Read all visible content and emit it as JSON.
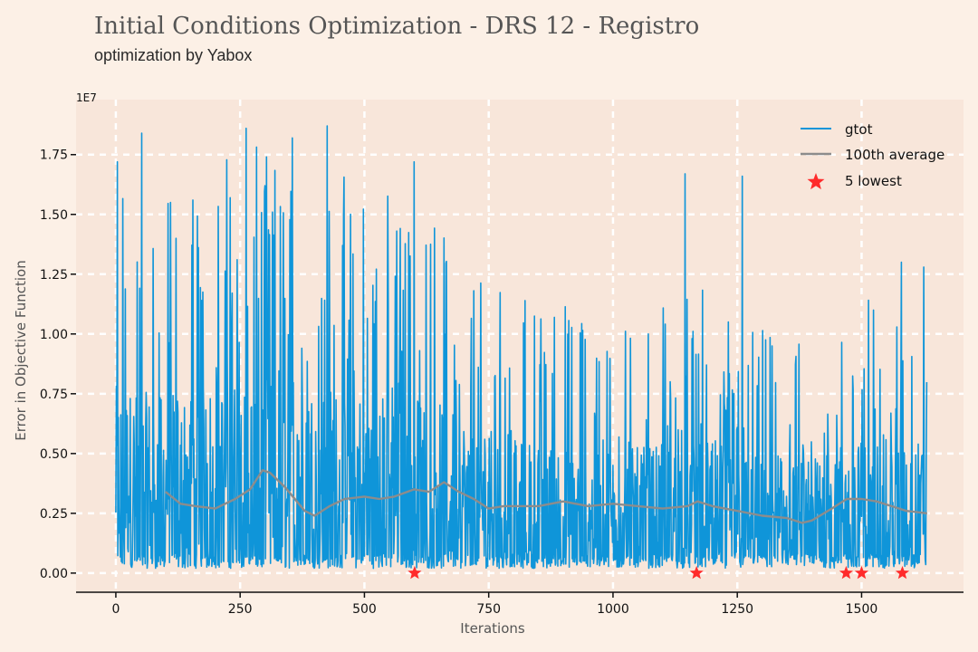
{
  "header": {
    "title": "Initial Conditions Optimization - DRS 12 - Registro",
    "subtitle": "optimization by Yabox"
  },
  "colors": {
    "background": "#fcf0e6",
    "plot_background": "#f8e6da",
    "grid": "#ffffff",
    "gtot": "#0f95d9",
    "average": "#8c8c8c",
    "lowest": "#ff2b2b"
  },
  "chart_data": {
    "type": "line",
    "title": "Initial Conditions Optimization - DRS 12 - Registro",
    "subtitle": "optimization by Yabox",
    "xlabel": "Iterations",
    "ylabel": "Error in Objective Function",
    "y_multiplier_label": "1E7",
    "xlim": [
      -80,
      1705
    ],
    "ylim": [
      -0.08,
      1.98
    ],
    "xticks": [
      0,
      250,
      500,
      750,
      1000,
      1250,
      1500
    ],
    "xtick_labels": [
      "0",
      "250",
      "500",
      "750",
      "1000",
      "1250",
      "1500"
    ],
    "yticks": [
      0.0,
      0.25,
      0.5,
      0.75,
      1.0,
      1.25,
      1.5,
      1.75
    ],
    "ytick_labels": [
      "0.00",
      "0.25",
      "0.50",
      "0.75",
      "1.00",
      "1.25",
      "1.50",
      "1.75"
    ],
    "grid": true,
    "legend_position": "top-right",
    "legend": [
      "gtot",
      "100th average",
      "5 lowest"
    ],
    "series": [
      {
        "name": "gtot",
        "kind": "line",
        "n_points": 1632,
        "peaks": [
          {
            "x": 3,
            "y": 1.72
          },
          {
            "x": 52,
            "y": 1.84
          },
          {
            "x": 110,
            "y": 1.55
          },
          {
            "x": 155,
            "y": 1.56
          },
          {
            "x": 230,
            "y": 1.57
          },
          {
            "x": 262,
            "y": 1.86
          },
          {
            "x": 300,
            "y": 1.62
          },
          {
            "x": 355,
            "y": 1.82
          },
          {
            "x": 425,
            "y": 1.87
          },
          {
            "x": 600,
            "y": 1.72
          },
          {
            "x": 1145,
            "y": 1.67
          },
          {
            "x": 1260,
            "y": 1.66
          },
          {
            "x": 1580,
            "y": 1.3
          },
          {
            "x": 1625,
            "y": 1.28
          }
        ],
        "upper_envelope": [
          {
            "x": 0,
            "y": 1.7
          },
          {
            "x": 100,
            "y": 1.6
          },
          {
            "x": 250,
            "y": 1.8
          },
          {
            "x": 450,
            "y": 1.7
          },
          {
            "x": 650,
            "y": 1.55
          },
          {
            "x": 800,
            "y": 1.2
          },
          {
            "x": 1000,
            "y": 1.1
          },
          {
            "x": 1200,
            "y": 1.2
          },
          {
            "x": 1350,
            "y": 0.95
          },
          {
            "x": 1500,
            "y": 1.2
          },
          {
            "x": 1632,
            "y": 1.2
          }
        ],
        "y_floor": 0.02
      },
      {
        "name": "100th average",
        "kind": "line",
        "points": [
          [
            100,
            0.34
          ],
          [
            130,
            0.29
          ],
          [
            160,
            0.28
          ],
          [
            200,
            0.27
          ],
          [
            240,
            0.31
          ],
          [
            270,
            0.35
          ],
          [
            295,
            0.43
          ],
          [
            310,
            0.42
          ],
          [
            340,
            0.36
          ],
          [
            380,
            0.26
          ],
          [
            400,
            0.24
          ],
          [
            430,
            0.28
          ],
          [
            460,
            0.31
          ],
          [
            500,
            0.32
          ],
          [
            530,
            0.31
          ],
          [
            560,
            0.32
          ],
          [
            600,
            0.35
          ],
          [
            630,
            0.34
          ],
          [
            660,
            0.38
          ],
          [
            690,
            0.34
          ],
          [
            720,
            0.31
          ],
          [
            750,
            0.27
          ],
          [
            780,
            0.28
          ],
          [
            850,
            0.28
          ],
          [
            900,
            0.3
          ],
          [
            950,
            0.28
          ],
          [
            1000,
            0.29
          ],
          [
            1050,
            0.28
          ],
          [
            1100,
            0.27
          ],
          [
            1150,
            0.28
          ],
          [
            1170,
            0.3
          ],
          [
            1200,
            0.28
          ],
          [
            1250,
            0.26
          ],
          [
            1300,
            0.24
          ],
          [
            1350,
            0.23
          ],
          [
            1380,
            0.21
          ],
          [
            1400,
            0.22
          ],
          [
            1440,
            0.27
          ],
          [
            1470,
            0.31
          ],
          [
            1500,
            0.31
          ],
          [
            1530,
            0.3
          ],
          [
            1560,
            0.28
          ],
          [
            1590,
            0.26
          ],
          [
            1632,
            0.25
          ]
        ]
      },
      {
        "name": "5 lowest",
        "kind": "scatter",
        "points": [
          [
            601,
            0.0
          ],
          [
            1168,
            0.0
          ],
          [
            1469,
            0.0
          ],
          [
            1500,
            0.0
          ],
          [
            1582,
            0.0
          ]
        ]
      }
    ]
  }
}
